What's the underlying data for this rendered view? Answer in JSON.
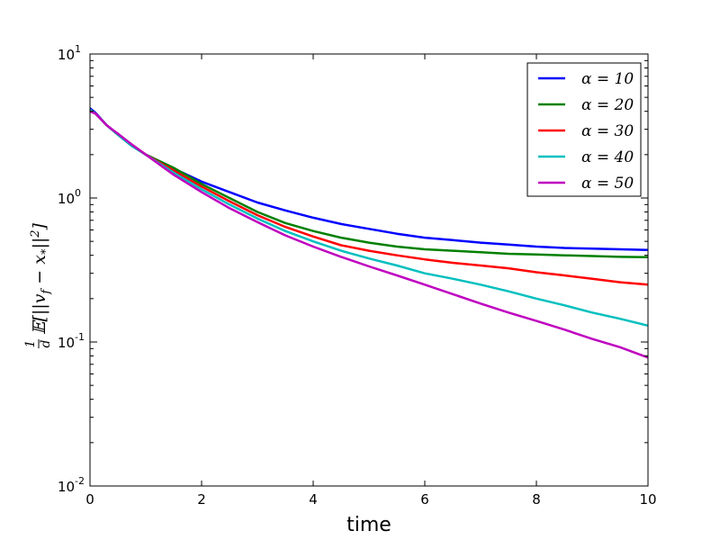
{
  "chart_data": {
    "type": "line",
    "title": "",
    "xlabel": "time",
    "ylabel": "1/d 𝔼[||v_f − x_*||²]",
    "xlim": [
      0,
      10
    ],
    "ylim": [
      0.01,
      10
    ],
    "yscale": "log",
    "grid": false,
    "legend_position": "top-right",
    "x_ticks": [
      "0",
      "2",
      "4",
      "6",
      "8",
      "10"
    ],
    "y_ticks": [
      {
        "base": "10",
        "exp": "-2",
        "value": 0.01
      },
      {
        "base": "10",
        "exp": "-1",
        "value": 0.1
      },
      {
        "base": "10",
        "exp": "0",
        "value": 1
      },
      {
        "base": "10",
        "exp": "1",
        "value": 10
      }
    ],
    "series": [
      {
        "name": "α = 10",
        "color": "#0000ff",
        "x": [
          0,
          0.1,
          0.3,
          0.5,
          0.75,
          1,
          1.5,
          2,
          2.5,
          3,
          3.5,
          4,
          4.5,
          5,
          5.5,
          6,
          6.5,
          7,
          7.5,
          8,
          8.5,
          9,
          9.5,
          10
        ],
        "y": [
          4.2,
          3.9,
          3.2,
          2.75,
          2.3,
          2.0,
          1.6,
          1.3,
          1.1,
          0.93,
          0.82,
          0.73,
          0.66,
          0.61,
          0.565,
          0.53,
          0.51,
          0.49,
          0.475,
          0.46,
          0.45,
          0.445,
          0.44,
          0.435
        ]
      },
      {
        "name": "α = 20",
        "color": "#008000",
        "x": [
          0,
          0.1,
          0.3,
          0.5,
          0.75,
          1,
          1.5,
          2,
          2.5,
          3,
          3.5,
          4,
          4.5,
          5,
          5.5,
          6,
          6.5,
          7,
          7.5,
          8,
          8.5,
          9,
          9.5,
          10
        ],
        "y": [
          4.1,
          3.85,
          3.2,
          2.75,
          2.3,
          2.0,
          1.62,
          1.25,
          1.0,
          0.8,
          0.67,
          0.59,
          0.53,
          0.49,
          0.46,
          0.44,
          0.43,
          0.42,
          0.41,
          0.405,
          0.4,
          0.395,
          0.39,
          0.388
        ]
      },
      {
        "name": "α = 30",
        "color": "#ff0000",
        "x": [
          0,
          0.1,
          0.3,
          0.5,
          0.75,
          1,
          1.5,
          2,
          2.5,
          3,
          3.5,
          4,
          4.5,
          5,
          5.5,
          6,
          6.5,
          7,
          7.5,
          8,
          8.5,
          9,
          9.5,
          10
        ],
        "y": [
          4.1,
          3.85,
          3.2,
          2.75,
          2.35,
          2.0,
          1.55,
          1.2,
          0.95,
          0.76,
          0.63,
          0.54,
          0.47,
          0.43,
          0.4,
          0.375,
          0.355,
          0.34,
          0.325,
          0.305,
          0.29,
          0.275,
          0.26,
          0.25
        ]
      },
      {
        "name": "α = 40",
        "color": "#00bfbf",
        "x": [
          0,
          0.1,
          0.3,
          0.5,
          0.75,
          1,
          1.5,
          2,
          2.5,
          3,
          3.5,
          4,
          4.5,
          5,
          5.5,
          6,
          6.5,
          7,
          7.5,
          8,
          8.5,
          9,
          9.5,
          10
        ],
        "y": [
          4.1,
          3.85,
          3.2,
          2.75,
          2.3,
          2.0,
          1.5,
          1.15,
          0.9,
          0.72,
          0.59,
          0.5,
          0.43,
          0.38,
          0.34,
          0.3,
          0.275,
          0.25,
          0.225,
          0.2,
          0.18,
          0.16,
          0.145,
          0.13
        ]
      },
      {
        "name": "α = 50",
        "color": "#bf00bf",
        "x": [
          0,
          0.1,
          0.3,
          0.5,
          0.75,
          1,
          1.5,
          2,
          2.5,
          3,
          3.5,
          4,
          4.5,
          5,
          5.5,
          6,
          6.5,
          7,
          7.5,
          8,
          8.5,
          9,
          9.5,
          10
        ],
        "y": [
          4.0,
          3.85,
          3.2,
          2.8,
          2.35,
          2.0,
          1.45,
          1.1,
          0.85,
          0.68,
          0.55,
          0.46,
          0.39,
          0.335,
          0.29,
          0.25,
          0.215,
          0.185,
          0.16,
          0.14,
          0.122,
          0.105,
          0.092,
          0.078
        ]
      }
    ]
  }
}
